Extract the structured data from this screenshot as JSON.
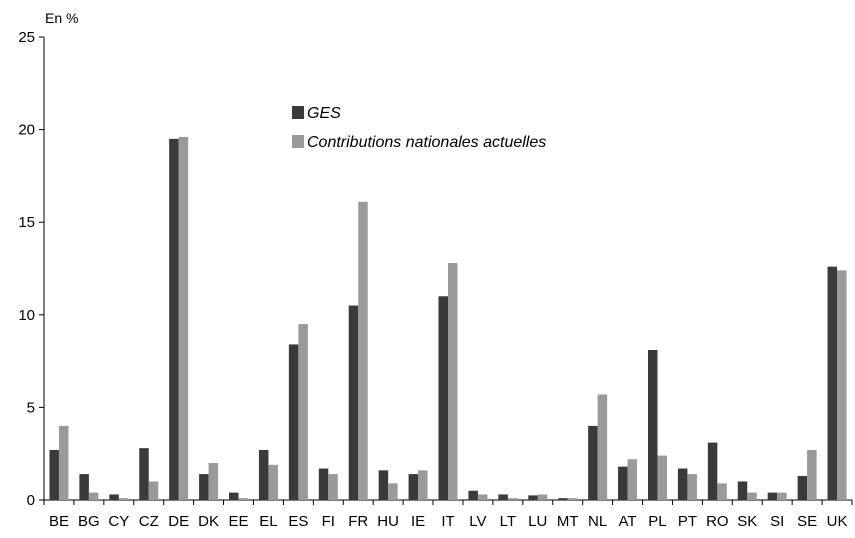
{
  "chart_data": {
    "type": "bar",
    "unit_label": "En %",
    "categories": [
      "BE",
      "BG",
      "CY",
      "CZ",
      "DE",
      "DK",
      "EE",
      "EL",
      "ES",
      "FI",
      "FR",
      "HU",
      "IE",
      "IT",
      "LV",
      "LT",
      "LU",
      "MT",
      "NL",
      "AT",
      "PL",
      "PT",
      "RO",
      "SK",
      "SI",
      "SE",
      "UK"
    ],
    "series": [
      {
        "name": "GES",
        "color": "#3a3a3a",
        "values": [
          2.7,
          1.4,
          0.3,
          2.8,
          19.5,
          1.4,
          0.4,
          2.7,
          8.4,
          1.7,
          10.5,
          1.6,
          1.4,
          11.0,
          0.5,
          0.3,
          0.25,
          0.1,
          4.0,
          1.8,
          8.1,
          1.7,
          3.1,
          1.0,
          0.4,
          1.3,
          12.6
        ]
      },
      {
        "name": "Contributions nationales actuelles",
        "color": "#9a9a9a",
        "values": [
          4.0,
          0.4,
          0.1,
          1.0,
          19.6,
          2.0,
          0.1,
          1.9,
          9.5,
          1.4,
          16.1,
          0.9,
          1.6,
          12.8,
          0.3,
          0.1,
          0.3,
          0.1,
          5.7,
          2.2,
          2.4,
          1.4,
          0.9,
          0.4,
          0.4,
          2.7,
          12.4
        ]
      }
    ],
    "ylim": [
      0,
      25
    ],
    "yticks": [
      0,
      5,
      10,
      15,
      20,
      25
    ],
    "legend_position": "top-center",
    "grid": false
  }
}
